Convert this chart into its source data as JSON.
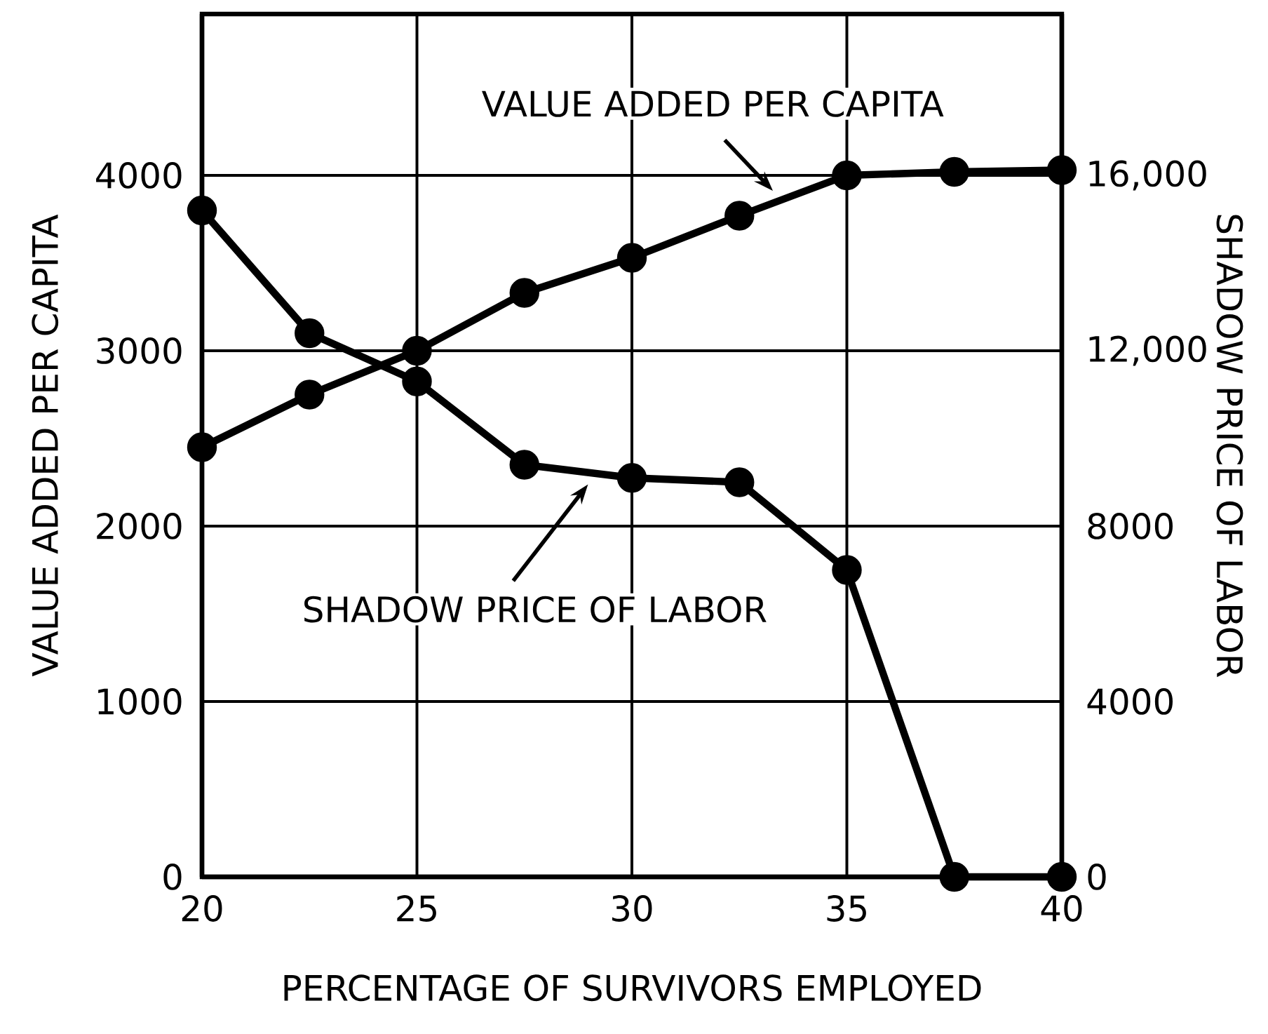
{
  "chart_data": {
    "type": "line",
    "xlabel": "PERCENTAGE OF SURVIVORS EMPLOYED",
    "ylabel": "VALUE ADDED PER CAPITA",
    "y2label": "SHADOW PRICE OF LABOR",
    "x": [
      20,
      22.5,
      25,
      27.5,
      30,
      32.5,
      35,
      37.5,
      40
    ],
    "series": [
      {
        "color": "#000000",
        "values": [
          2450,
          2750,
          3000,
          3330,
          3530,
          3770,
          4000,
          4020,
          4030
        ]
      },
      {
        "color": "#000000",
        "axis": "y2",
        "values": [
          15200,
          12400,
          11300,
          9400,
          9100,
          9000,
          7000,
          0,
          0
        ]
      }
    ],
    "xlim": [
      20,
      40
    ],
    "xticks": [
      20,
      25,
      30,
      35,
      40
    ],
    "ylim": [
      0,
      4920
    ],
    "yticks": [
      0,
      1000,
      2000,
      3000,
      4000
    ],
    "y2lim": [
      0,
      19680
    ],
    "y2ticks": [
      0,
      4000,
      8000,
      {
        "value": 12000,
        "label": "12,000"
      },
      {
        "value": 16000,
        "label": "16,000"
      }
    ],
    "annotations": [
      "VALUE ADDED PER CAPITA",
      "SHADOW PRICE OF LABOR"
    ],
    "grid": true,
    "marker": "circle",
    "line_style": "solid"
  }
}
